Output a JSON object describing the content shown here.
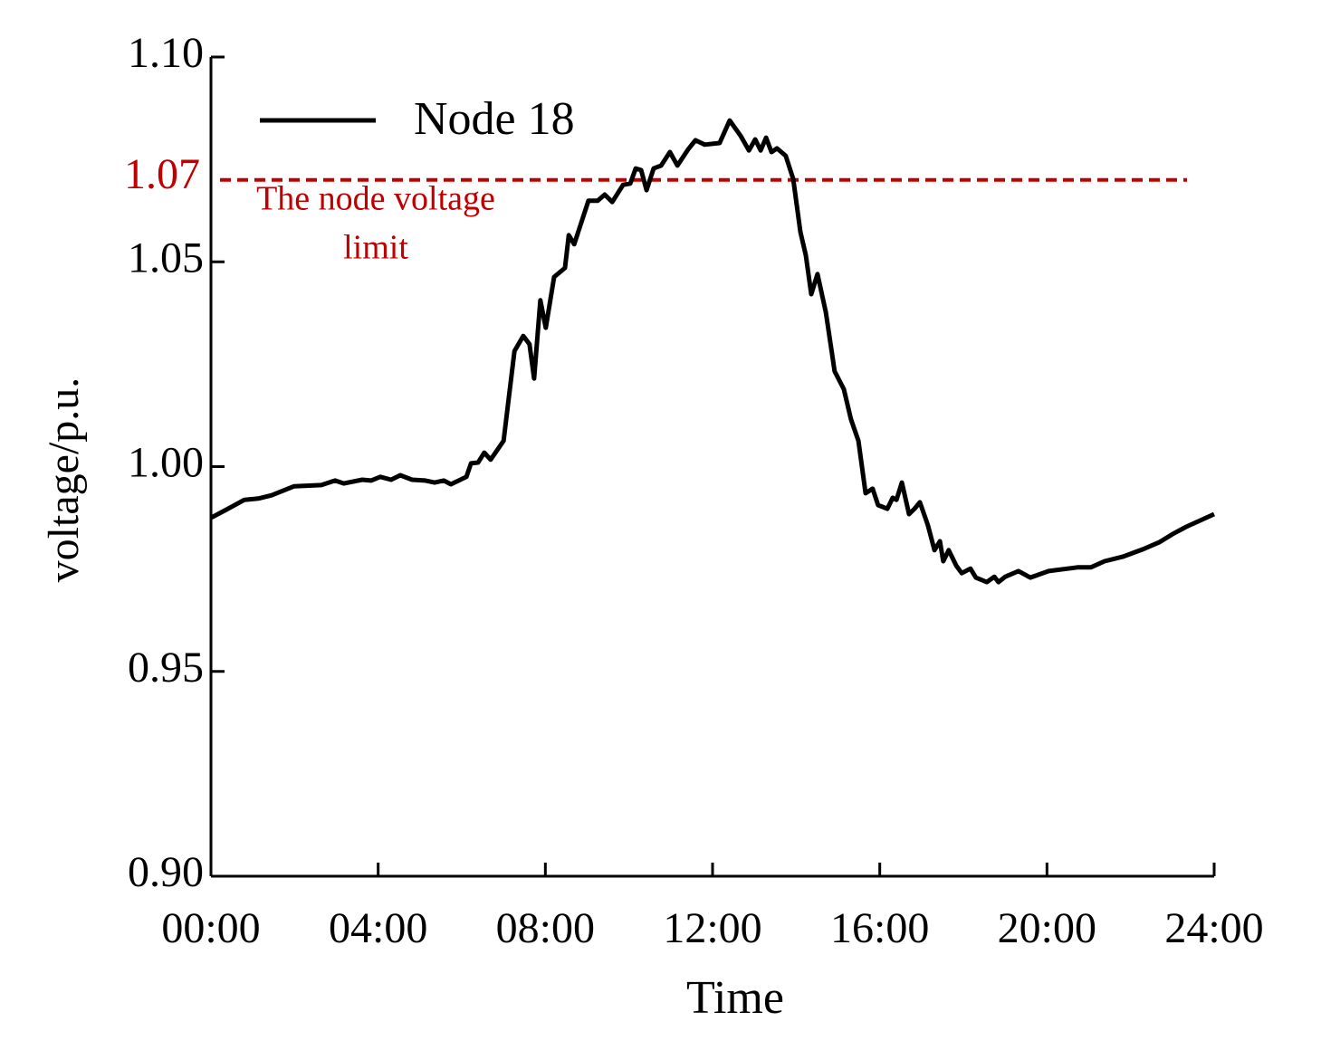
{
  "chart_data": {
    "type": "line",
    "xlabel": "Time",
    "ylabel": "voltage/p.u.",
    "xlim": [
      0,
      24
    ],
    "ylim": [
      0.9,
      1.1
    ],
    "xticks": [
      {
        "value": 0,
        "label": "00:00"
      },
      {
        "value": 4,
        "label": "04:00"
      },
      {
        "value": 8,
        "label": "08:00"
      },
      {
        "value": 12,
        "label": "12:00"
      },
      {
        "value": 16,
        "label": "16:00"
      },
      {
        "value": 20,
        "label": "20:00"
      },
      {
        "value": 24,
        "label": "24:00"
      }
    ],
    "yticks": [
      {
        "value": 0.9,
        "label": "0.90"
      },
      {
        "value": 0.95,
        "label": "0.95"
      },
      {
        "value": 1.0,
        "label": "1.00"
      },
      {
        "value": 1.05,
        "label": "1.05"
      },
      {
        "value": 1.1,
        "label": "1.10"
      }
    ],
    "legend": "upper left",
    "x": [
      0,
      0.37,
      0.8,
      1.13,
      1.45,
      1.99,
      2.64,
      2.97,
      3.18,
      3.62,
      3.83,
      4.05,
      4.31,
      4.53,
      4.81,
      5.13,
      5.35,
      5.57,
      5.74,
      6.11,
      6.22,
      6.39,
      6.54,
      6.69,
      7.0,
      7.26,
      7.47,
      7.62,
      7.73,
      7.88,
      8.01,
      8.21,
      8.47,
      8.56,
      8.69,
      9.03,
      9.25,
      9.42,
      9.6,
      9.86,
      10.03,
      10.16,
      10.29,
      10.42,
      10.59,
      10.77,
      10.98,
      11.16,
      11.42,
      11.59,
      11.81,
      12.17,
      12.41,
      12.67,
      12.87,
      13.02,
      13.15,
      13.28,
      13.41,
      13.54,
      13.75,
      13.93,
      14.1,
      14.23,
      14.36,
      14.51,
      14.71,
      14.92,
      15.14,
      15.31,
      15.49,
      15.66,
      15.83,
      15.96,
      16.18,
      16.31,
      16.4,
      16.53,
      16.7,
      16.83,
      16.96,
      17.15,
      17.31,
      17.44,
      17.52,
      17.65,
      17.83,
      17.96,
      18.17,
      18.3,
      18.56,
      18.74,
      18.84,
      19.0,
      19.32,
      19.6,
      20.04,
      20.73,
      21.05,
      21.38,
      21.81,
      22.29,
      22.68,
      23.0,
      23.33,
      24
    ],
    "series": [
      {
        "name": "Node 18",
        "color": "#000000",
        "values": [
          0.9875,
          0.9895,
          0.9919,
          0.9922,
          0.993,
          0.9952,
          0.9955,
          0.9966,
          0.9959,
          0.9968,
          0.9966,
          0.9975,
          0.9968,
          0.9979,
          0.9968,
          0.9966,
          0.9961,
          0.9966,
          0.9957,
          0.9975,
          1.0008,
          1.001,
          1.0034,
          1.0017,
          1.0063,
          1.0282,
          1.0319,
          1.0299,
          1.0215,
          1.0406,
          1.0339,
          1.0463,
          1.0485,
          1.0565,
          1.0543,
          1.0649,
          1.0649,
          1.0664,
          1.0646,
          1.0688,
          1.0691,
          1.0728,
          1.0724,
          1.0675,
          1.0728,
          1.0735,
          1.0768,
          1.0735,
          1.0775,
          1.0797,
          1.0786,
          1.079,
          1.0845,
          1.0808,
          1.0772,
          1.0799,
          1.0772,
          1.0803,
          1.0768,
          1.0777,
          1.0759,
          1.0702,
          1.0573,
          1.0516,
          1.0421,
          1.047,
          1.0377,
          1.0233,
          1.0189,
          1.0116,
          1.0063,
          0.9935,
          0.9946,
          0.9906,
          0.9897,
          0.9924,
          0.9919,
          0.9961,
          0.9884,
          0.9897,
          0.9913,
          0.9857,
          0.9796,
          0.9818,
          0.9769,
          0.9796,
          0.9758,
          0.974,
          0.9751,
          0.9729,
          0.9718,
          0.9731,
          0.9718,
          0.9731,
          0.9745,
          0.9729,
          0.9745,
          0.9754,
          0.9754,
          0.9769,
          0.978,
          0.9798,
          0.9815,
          0.9835,
          0.9853,
          0.9884
        ]
      }
    ],
    "reference_lines": [
      {
        "value": 1.07,
        "color": "#c00000",
        "text": [
          "The node voltage",
          "limit"
        ]
      }
    ]
  }
}
